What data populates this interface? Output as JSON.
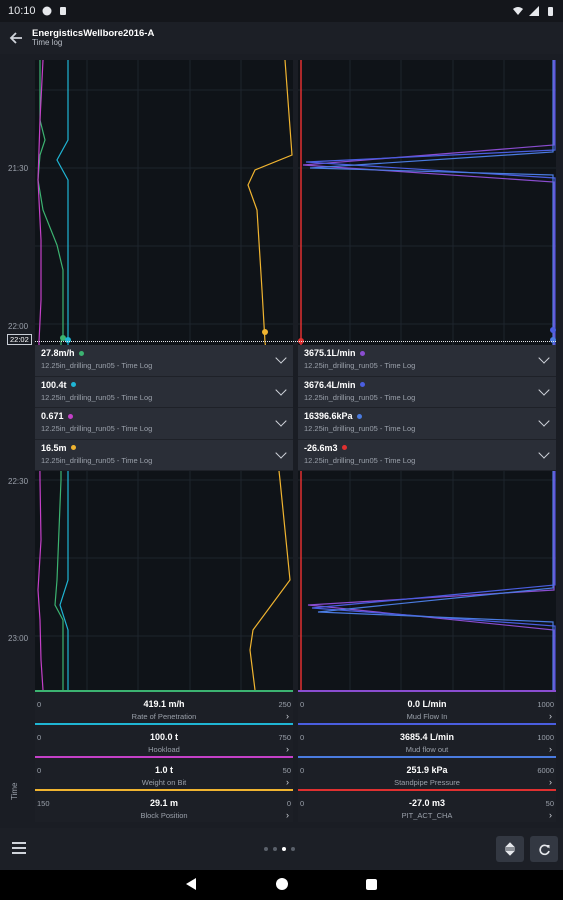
{
  "status": {
    "time": "10:10"
  },
  "app": {
    "title": "EnergisticsWellbore2016-A",
    "subtitle": "Time log"
  },
  "time_axis": {
    "ticks": [
      "21:30",
      "22:00",
      "22:30",
      "23:00"
    ],
    "cursor": "22:02",
    "label": "Time"
  },
  "readouts": {
    "left": [
      {
        "value": "27.8m/h",
        "color": "#3cb371",
        "source": "12.25in_drilling_run05 - Time Log"
      },
      {
        "value": "100.4t",
        "color": "#1fb5d4",
        "source": "12.25in_drilling_run05 - Time Log"
      },
      {
        "value": "0.671",
        "color": "#c440c8",
        "source": "12.25in_drilling_run05 - Time Log"
      },
      {
        "value": "16.5m",
        "color": "#f0b430",
        "source": "12.25in_drilling_run05 - Time Log"
      }
    ],
    "right": [
      {
        "value": "3675.1L/min",
        "color": "#8a4dd0",
        "source": "12.25in_drilling_run05 - Time Log"
      },
      {
        "value": "3676.4L/min",
        "color": "#4a5ee0",
        "source": "12.25in_drilling_run05 - Time Log"
      },
      {
        "value": "16396.6kPa",
        "color": "#4a7be0",
        "source": "12.25in_drilling_run05 - Time Log"
      },
      {
        "value": "-26.6m3",
        "color": "#e03030",
        "source": "12.25in_drilling_run05 - Time Log"
      }
    ]
  },
  "legend": {
    "left": [
      {
        "min": "0",
        "max": "250",
        "value": "419.1 m/h",
        "name": "Rate of Penetration",
        "color": "#3cb371"
      },
      {
        "min": "0",
        "max": "750",
        "value": "100.0 t",
        "name": "Hookload",
        "color": "#1fb5d4"
      },
      {
        "min": "0",
        "max": "50",
        "value": "1.0 t",
        "name": "Weight on Bit",
        "color": "#c440c8"
      },
      {
        "min": "150",
        "max": "0",
        "value": "29.1 m",
        "name": "Block Position",
        "color": "#f0b430"
      }
    ],
    "right": [
      {
        "min": "0",
        "max": "1000",
        "value": "0.0 L/min",
        "name": "Mud Flow In",
        "color": "#8a4dd0"
      },
      {
        "min": "0",
        "max": "1000",
        "value": "3685.4 L/min",
        "name": "Mud flow out",
        "color": "#4a5ee0"
      },
      {
        "min": "0",
        "max": "6000",
        "value": "251.9 kPa",
        "name": "Standpipe Pressure",
        "color": "#4a7be0"
      },
      {
        "min": "0",
        "max": "50",
        "value": "-27.0 m3",
        "name": "PIT_ACT_CHA",
        "color": "#e03030"
      }
    ]
  },
  "pager": {
    "count": 4,
    "active": 2
  },
  "icons": {
    "back": "arrow-back-icon",
    "menu": "menu-icon",
    "expand": "expand-icon",
    "refresh": "refresh-icon"
  }
}
